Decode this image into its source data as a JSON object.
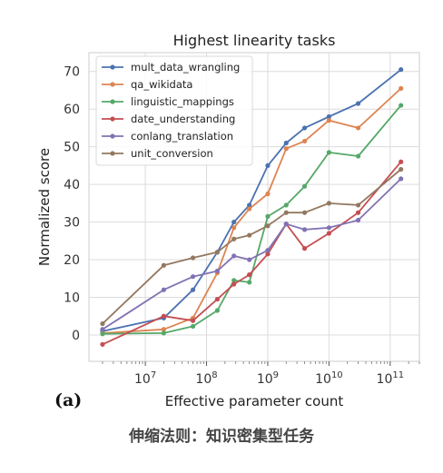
{
  "panel_label": "(a)",
  "caption": "伸缩法则：知识密集型任务",
  "chart_data": {
    "type": "line",
    "title": "Highest linearity tasks",
    "xlabel": "Effective parameter count",
    "ylabel": "Normalized score",
    "x_scale": "log",
    "xlim": [
      1200000.0,
      300000000000.0
    ],
    "ylim": [
      -7,
      75
    ],
    "x_ticks": [
      {
        "value": 10000000.0,
        "base": "10",
        "exp": "7"
      },
      {
        "value": 100000000.0,
        "base": "10",
        "exp": "8"
      },
      {
        "value": 1000000000.0,
        "base": "10",
        "exp": "9"
      },
      {
        "value": 10000000000.0,
        "base": "10",
        "exp": "10"
      },
      {
        "value": 100000000000.0,
        "base": "10",
        "exp": "11"
      }
    ],
    "y_ticks": [
      "0",
      "10",
      "20",
      "30",
      "40",
      "50",
      "60",
      "70"
    ],
    "grid": true,
    "legend_position": "top-left",
    "series": [
      {
        "name": "mult_data_wrangling",
        "color": "#4c72b0",
        "x": [
          2000000.0,
          20000000.0,
          60000000.0,
          150000000.0,
          280000000.0,
          500000000.0,
          1000000000.0,
          2000000000.0,
          4000000000.0,
          10000000000.0,
          30000000000.0,
          150000000000.0
        ],
        "y": [
          1,
          4.5,
          12,
          22,
          30,
          34.5,
          45,
          51,
          55,
          58,
          61.5,
          70.5
        ]
      },
      {
        "name": "qa_wikidata",
        "color": "#dd8452",
        "x": [
          2000000.0,
          20000000.0,
          60000000.0,
          150000000.0,
          280000000.0,
          500000000.0,
          1000000000.0,
          2000000000.0,
          4000000000.0,
          10000000000.0,
          30000000000.0,
          150000000000.0
        ],
        "y": [
          0.5,
          1.5,
          4.5,
          16.5,
          28.5,
          33.5,
          37.5,
          49.5,
          51.5,
          57,
          55,
          65.5
        ]
      },
      {
        "name": "linguistic_mappings",
        "color": "#55a868",
        "x": [
          2000000.0,
          20000000.0,
          60000000.0,
          150000000.0,
          280000000.0,
          500000000.0,
          1000000000.0,
          2000000000.0,
          4000000000.0,
          10000000000.0,
          30000000000.0,
          150000000000.0
        ],
        "y": [
          0.3,
          0.5,
          2.3,
          6.5,
          14.5,
          14,
          31.5,
          34.5,
          39.5,
          48.5,
          47.5,
          61
        ]
      },
      {
        "name": "date_understanding",
        "color": "#c44e52",
        "x": [
          2000000.0,
          20000000.0,
          60000000.0,
          150000000.0,
          280000000.0,
          500000000.0,
          1000000000.0,
          2000000000.0,
          4000000000.0,
          10000000000.0,
          30000000000.0,
          150000000000.0
        ],
        "y": [
          -2.5,
          5,
          3.8,
          9.5,
          13.5,
          16,
          21.5,
          29.5,
          23,
          27,
          32.5,
          46
        ]
      },
      {
        "name": "conlang_translation",
        "color": "#8172b3",
        "x": [
          2000000.0,
          20000000.0,
          60000000.0,
          150000000.0,
          280000000.0,
          500000000.0,
          1000000000.0,
          2000000000.0,
          4000000000.0,
          10000000000.0,
          30000000000.0,
          150000000000.0
        ],
        "y": [
          1.5,
          12,
          15.5,
          17,
          21,
          20,
          22.5,
          29.5,
          28,
          28.5,
          30.5,
          41.5
        ]
      },
      {
        "name": "unit_conversion",
        "color": "#937860",
        "x": [
          2000000.0,
          20000000.0,
          60000000.0,
          150000000.0,
          280000000.0,
          500000000.0,
          1000000000.0,
          2000000000.0,
          4000000000.0,
          10000000000.0,
          30000000000.0,
          150000000000.0
        ],
        "y": [
          3,
          18.5,
          20.5,
          22,
          25.5,
          26.5,
          29,
          32.5,
          32.5,
          35,
          34.5,
          44
        ]
      }
    ]
  }
}
